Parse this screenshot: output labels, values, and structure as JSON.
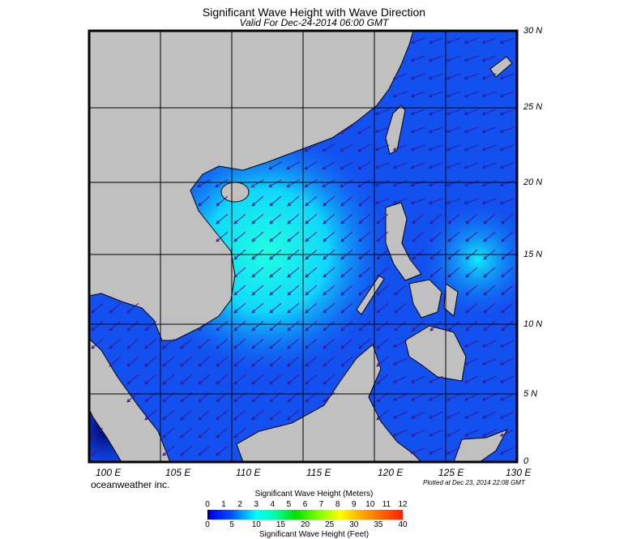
{
  "title": "Significant Wave Height with Wave Direction",
  "subtitle": "Valid For Dec-24-2014 06:00 GMT",
  "lon_labels": [
    "100 E",
    "105 E",
    "110 E",
    "115 E",
    "120 E",
    "125 E",
    "130 E"
  ],
  "lat_labels": [
    "30 N",
    "25 N",
    "20 N",
    "15 N",
    "10 N",
    "5 N",
    "0"
  ],
  "credit": "oceanweather inc.",
  "plotted": "Plotted at Dec 23, 2014 22:08 GMT",
  "colorbar": {
    "meters_label": "Significant Wave Height (Meters)",
    "feet_label": "Significant Wave Height (Feet)",
    "meters_ticks": [
      "0",
      "1",
      "2",
      "3",
      "4",
      "5",
      "6",
      "7",
      "8",
      "9",
      "10",
      "11",
      "12"
    ],
    "feet_ticks": [
      "0",
      "5",
      "10",
      "15",
      "20",
      "25",
      "30",
      "35",
      "40"
    ]
  },
  "colors": {
    "land": "#c0c0c0",
    "ocean_low": "#0a3cf0",
    "ocean_mid": "#00e8f8",
    "arrow": "#3a1590"
  },
  "prevailing_wave_direction": "northeast (arrows pointing southwest)"
}
